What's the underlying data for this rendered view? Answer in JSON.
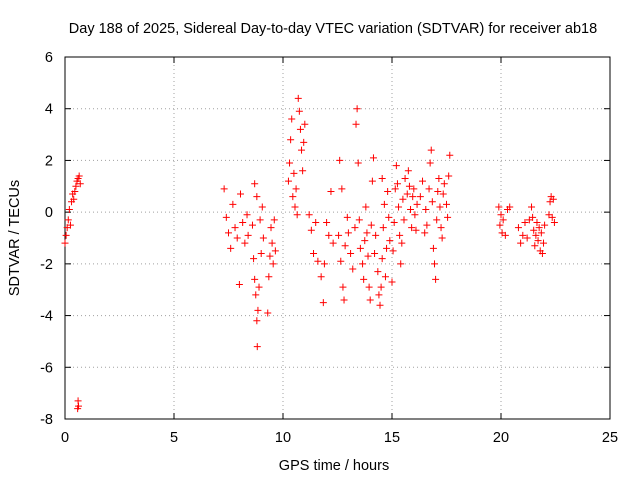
{
  "chart_data": {
    "type": "scatter",
    "title": "Day 188 of 2025, Sidereal Day-to-day VTEC variation (SDTVAR) for receiver ab18",
    "xlabel": "GPS time / hours",
    "ylabel": "SDTVAR / TECUs",
    "xlim": [
      0,
      25
    ],
    "ylim": [
      -8,
      6
    ],
    "xticks": [
      0,
      5,
      10,
      15,
      20,
      25
    ],
    "yticks": [
      -8,
      -6,
      -4,
      -2,
      0,
      2,
      4,
      6
    ],
    "grid": true,
    "marker": "+",
    "color": "#ff0000",
    "legend": "none",
    "series": [
      {
        "name": "SDTVAR",
        "points": [
          [
            0.0,
            -1.2
          ],
          [
            0.05,
            -0.9
          ],
          [
            0.1,
            -0.6
          ],
          [
            0.15,
            -0.3
          ],
          [
            0.2,
            0.1
          ],
          [
            0.25,
            -0.5
          ],
          [
            0.3,
            0.4
          ],
          [
            0.35,
            0.7
          ],
          [
            0.4,
            0.5
          ],
          [
            0.45,
            0.8
          ],
          [
            0.5,
            1.0
          ],
          [
            0.55,
            1.2
          ],
          [
            0.6,
            1.3
          ],
          [
            0.65,
            1.4
          ],
          [
            0.7,
            1.1
          ],
          [
            0.6,
            -7.3
          ],
          [
            0.62,
            -7.5
          ],
          [
            0.58,
            -7.6
          ],
          [
            7.3,
            0.9
          ],
          [
            7.4,
            -0.2
          ],
          [
            7.5,
            -0.8
          ],
          [
            7.6,
            -1.4
          ],
          [
            7.7,
            0.3
          ],
          [
            7.8,
            -0.6
          ],
          [
            7.9,
            -1.0
          ],
          [
            8.0,
            -2.8
          ],
          [
            8.05,
            0.7
          ],
          [
            8.15,
            -0.4
          ],
          [
            8.25,
            -1.2
          ],
          [
            8.35,
            -0.1
          ],
          [
            8.4,
            -0.9
          ],
          [
            8.6,
            -0.5
          ],
          [
            8.65,
            -1.8
          ],
          [
            8.7,
            -2.6
          ],
          [
            8.75,
            -3.2
          ],
          [
            8.8,
            -4.2
          ],
          [
            8.82,
            -5.2
          ],
          [
            8.85,
            -3.8
          ],
          [
            8.9,
            -2.9
          ],
          [
            8.95,
            -0.3
          ],
          [
            9.0,
            -1.6
          ],
          [
            9.05,
            0.2
          ],
          [
            9.1,
            -1.0
          ],
          [
            8.7,
            1.1
          ],
          [
            8.8,
            0.6
          ],
          [
            9.3,
            -3.9
          ],
          [
            9.35,
            -2.5
          ],
          [
            9.4,
            -1.7
          ],
          [
            9.45,
            -0.6
          ],
          [
            9.5,
            -1.2
          ],
          [
            9.55,
            -2.0
          ],
          [
            9.6,
            -0.3
          ],
          [
            9.65,
            -1.5
          ],
          [
            10.25,
            1.2
          ],
          [
            10.3,
            1.9
          ],
          [
            10.35,
            2.8
          ],
          [
            10.4,
            3.6
          ],
          [
            10.5,
            1.5
          ],
          [
            10.6,
            0.9
          ],
          [
            10.7,
            4.4
          ],
          [
            10.75,
            3.9
          ],
          [
            10.8,
            3.2
          ],
          [
            10.85,
            2.4
          ],
          [
            10.9,
            1.6
          ],
          [
            10.95,
            2.7
          ],
          [
            11.0,
            3.4
          ],
          [
            10.55,
            0.2
          ],
          [
            10.65,
            -0.1
          ],
          [
            10.45,
            0.6
          ],
          [
            11.2,
            -0.1
          ],
          [
            11.3,
            -0.7
          ],
          [
            11.4,
            -1.6
          ],
          [
            11.5,
            -0.4
          ],
          [
            11.6,
            -1.9
          ],
          [
            11.75,
            -2.5
          ],
          [
            11.85,
            -3.5
          ],
          [
            11.9,
            -2.0
          ],
          [
            12.0,
            -0.4
          ],
          [
            12.1,
            -0.9
          ],
          [
            12.2,
            0.8
          ],
          [
            12.3,
            -1.2
          ],
          [
            12.55,
            -0.9
          ],
          [
            12.65,
            -1.9
          ],
          [
            12.75,
            -2.9
          ],
          [
            12.8,
            -3.4
          ],
          [
            12.85,
            -1.3
          ],
          [
            12.95,
            -0.2
          ],
          [
            13.0,
            -0.8
          ],
          [
            12.6,
            2.0
          ],
          [
            12.7,
            0.9
          ],
          [
            13.1,
            -1.6
          ],
          [
            13.2,
            -2.2
          ],
          [
            13.3,
            -0.6
          ],
          [
            13.35,
            3.4
          ],
          [
            13.4,
            4.0
          ],
          [
            13.45,
            1.9
          ],
          [
            13.5,
            -0.3
          ],
          [
            13.55,
            -1.4
          ],
          [
            13.65,
            -2.0
          ],
          [
            13.7,
            -2.6
          ],
          [
            13.75,
            -1.1
          ],
          [
            13.8,
            0.2
          ],
          [
            13.85,
            -0.8
          ],
          [
            13.9,
            -1.7
          ],
          [
            13.95,
            -2.9
          ],
          [
            14.0,
            -3.4
          ],
          [
            14.05,
            -0.5
          ],
          [
            14.1,
            1.2
          ],
          [
            14.15,
            2.1
          ],
          [
            14.2,
            -1.6
          ],
          [
            14.25,
            -0.9
          ],
          [
            14.35,
            -2.3
          ],
          [
            14.4,
            -3.2
          ],
          [
            14.45,
            -3.6
          ],
          [
            14.5,
            -2.9
          ],
          [
            14.55,
            -1.8
          ],
          [
            14.6,
            -0.6
          ],
          [
            14.65,
            0.3
          ],
          [
            14.7,
            -2.5
          ],
          [
            14.75,
            -1.4
          ],
          [
            14.8,
            0.8
          ],
          [
            14.85,
            -0.2
          ],
          [
            14.9,
            -1.1
          ],
          [
            14.55,
            1.3
          ],
          [
            15.0,
            -2.7
          ],
          [
            15.05,
            -1.5
          ],
          [
            15.1,
            -0.4
          ],
          [
            15.15,
            0.9
          ],
          [
            15.2,
            1.8
          ],
          [
            15.25,
            1.1
          ],
          [
            15.3,
            0.2
          ],
          [
            15.35,
            -0.9
          ],
          [
            15.4,
            -2.0
          ],
          [
            15.45,
            -1.2
          ],
          [
            15.5,
            0.5
          ],
          [
            15.55,
            -0.3
          ],
          [
            15.6,
            1.3
          ],
          [
            15.7,
            0.7
          ],
          [
            15.75,
            1.6
          ],
          [
            15.8,
            1.0
          ],
          [
            15.85,
            0.1
          ],
          [
            15.9,
            -0.6
          ],
          [
            15.95,
            0.6
          ],
          [
            16.0,
            0.9
          ],
          [
            16.05,
            -0.1
          ],
          [
            16.1,
            -0.7
          ],
          [
            16.15,
            0.3
          ],
          [
            16.3,
            0.6
          ],
          [
            16.4,
            1.2
          ],
          [
            16.5,
            -0.8
          ],
          [
            16.55,
            0.1
          ],
          [
            16.6,
            -0.5
          ],
          [
            16.7,
            0.9
          ],
          [
            16.75,
            1.9
          ],
          [
            16.8,
            2.4
          ],
          [
            16.85,
            0.4
          ],
          [
            16.9,
            -1.4
          ],
          [
            16.95,
            -2.0
          ],
          [
            17.0,
            -2.6
          ],
          [
            17.05,
            -0.3
          ],
          [
            17.1,
            0.8
          ],
          [
            17.15,
            1.3
          ],
          [
            17.2,
            0.2
          ],
          [
            17.25,
            -0.6
          ],
          [
            17.3,
            -1.0
          ],
          [
            17.35,
            0.7
          ],
          [
            17.4,
            1.1
          ],
          [
            17.5,
            0.3
          ],
          [
            17.55,
            -0.2
          ],
          [
            17.6,
            1.4
          ],
          [
            17.65,
            2.2
          ],
          [
            19.9,
            0.2
          ],
          [
            19.95,
            -0.5
          ],
          [
            20.0,
            -0.1
          ],
          [
            20.05,
            -0.8
          ],
          [
            20.1,
            -0.3
          ],
          [
            20.2,
            -0.9
          ],
          [
            20.3,
            0.1
          ],
          [
            20.4,
            0.2
          ],
          [
            20.8,
            -0.6
          ],
          [
            20.9,
            -1.2
          ],
          [
            21.0,
            -0.9
          ],
          [
            21.1,
            -0.4
          ],
          [
            21.2,
            -1.0
          ],
          [
            21.3,
            -0.3
          ],
          [
            21.4,
            0.2
          ],
          [
            21.45,
            -0.2
          ],
          [
            21.5,
            -0.7
          ],
          [
            21.55,
            -1.3
          ],
          [
            21.6,
            -0.9
          ],
          [
            21.65,
            -0.4
          ],
          [
            21.7,
            -1.1
          ],
          [
            21.75,
            -0.6
          ],
          [
            21.8,
            -1.5
          ],
          [
            21.85,
            -0.8
          ],
          [
            21.9,
            -1.6
          ],
          [
            21.95,
            -1.2
          ],
          [
            22.0,
            -0.5
          ],
          [
            22.2,
            -0.1
          ],
          [
            22.25,
            0.4
          ],
          [
            22.3,
            0.6
          ],
          [
            22.35,
            -0.2
          ],
          [
            22.4,
            0.5
          ],
          [
            22.45,
            -0.4
          ]
        ]
      }
    ]
  }
}
